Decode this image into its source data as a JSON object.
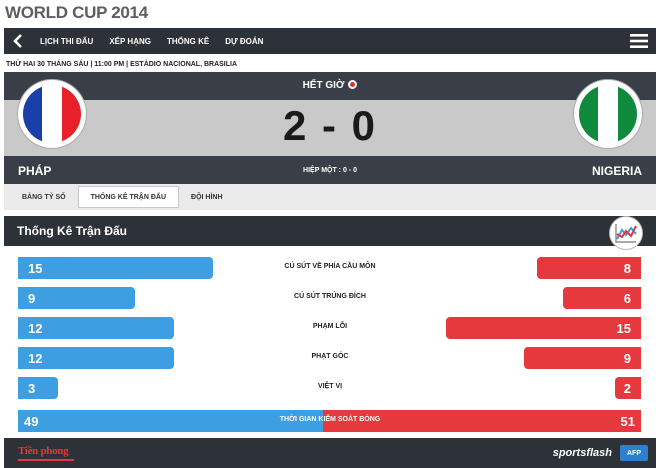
{
  "app_title": "WORLD CUP 2014",
  "nav": {
    "items": [
      "LỊCH THI ĐẤU",
      "XẾP HẠNG",
      "THỐNG KÊ",
      "DỰ ĐOÁN"
    ]
  },
  "match_info": "THỨ HAI 30 THÁNG SÁU | 11:00 PM | ESTÁDIO NACIONAL, BRASILIA",
  "status": "HẾT GIỜ",
  "score": "2 - 0",
  "home": {
    "name": "PHÁP",
    "flag_colors": [
      "#1a3fa8",
      "#ffffff",
      "#e8202a"
    ]
  },
  "away": {
    "name": "NIGERIA",
    "flag_colors": [
      "#0f8a3c",
      "#ffffff",
      "#0f8a3c"
    ]
  },
  "half": "HIỆP MỘT : 0 - 0",
  "tabs": [
    "BẢNG TỶ SỐ",
    "THỐNG KÊ TRẬN ĐẤU",
    "ĐỘI HÌNH"
  ],
  "active_tab": 1,
  "stats_title": "Thống Kê Trận Đấu",
  "stats": [
    {
      "label": "CÚ SÚT VỀ PHÍA CẦU MÔN",
      "home": "15",
      "away": "8"
    },
    {
      "label": "CÚ SÚT TRÚNG ĐÍCH",
      "home": "9",
      "away": "6"
    },
    {
      "label": "PHẠM LỖI",
      "home": "12",
      "away": "15"
    },
    {
      "label": "PHẠT GÓC",
      "home": "12",
      "away": "9"
    },
    {
      "label": "VIỆT VỊ",
      "home": "3",
      "away": "2"
    }
  ],
  "possession": {
    "label": "THỜI GIAN KIỂM SOÁT BÓNG",
    "home": "49",
    "away": "51"
  },
  "footer": {
    "left_logo": "Tiền phong",
    "right_logo": "sportsflash",
    "badge": "AFP"
  },
  "colors": {
    "home_bar": "#3d9fe2",
    "away_bar": "#e5393d",
    "dark_band": "#2d3138"
  }
}
